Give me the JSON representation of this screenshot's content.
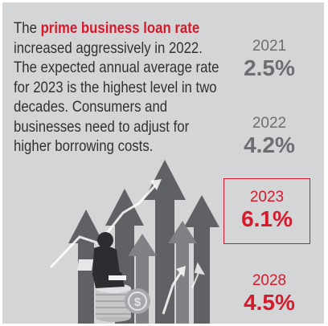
{
  "intro": {
    "highlight": "prime business loan rate",
    "lead": "The ",
    "body": " increased aggressively in 2022. The expected annual average rate for 2023 is the highest level in two decades. Consumers and businesses need to adjust for higher borrowing costs."
  },
  "rates": [
    {
      "year": "2021",
      "value": "2.5%"
    },
    {
      "year": "2022",
      "value": "4.2%"
    },
    {
      "year": "2023",
      "value": "6.1%"
    },
    {
      "year": "2028",
      "value": "4.5%"
    }
  ],
  "colors": {
    "accent": "#d51a2c",
    "panel_background": "#d4d5d7",
    "muted_text": "#6c6e71",
    "body_text": "#2f3133"
  },
  "illustration": {
    "description_icons": [
      "rising-arrows-graphic",
      "person-with-laptop-illustration",
      "coin-stack-icon",
      "dollar-coin-icon"
    ]
  }
}
